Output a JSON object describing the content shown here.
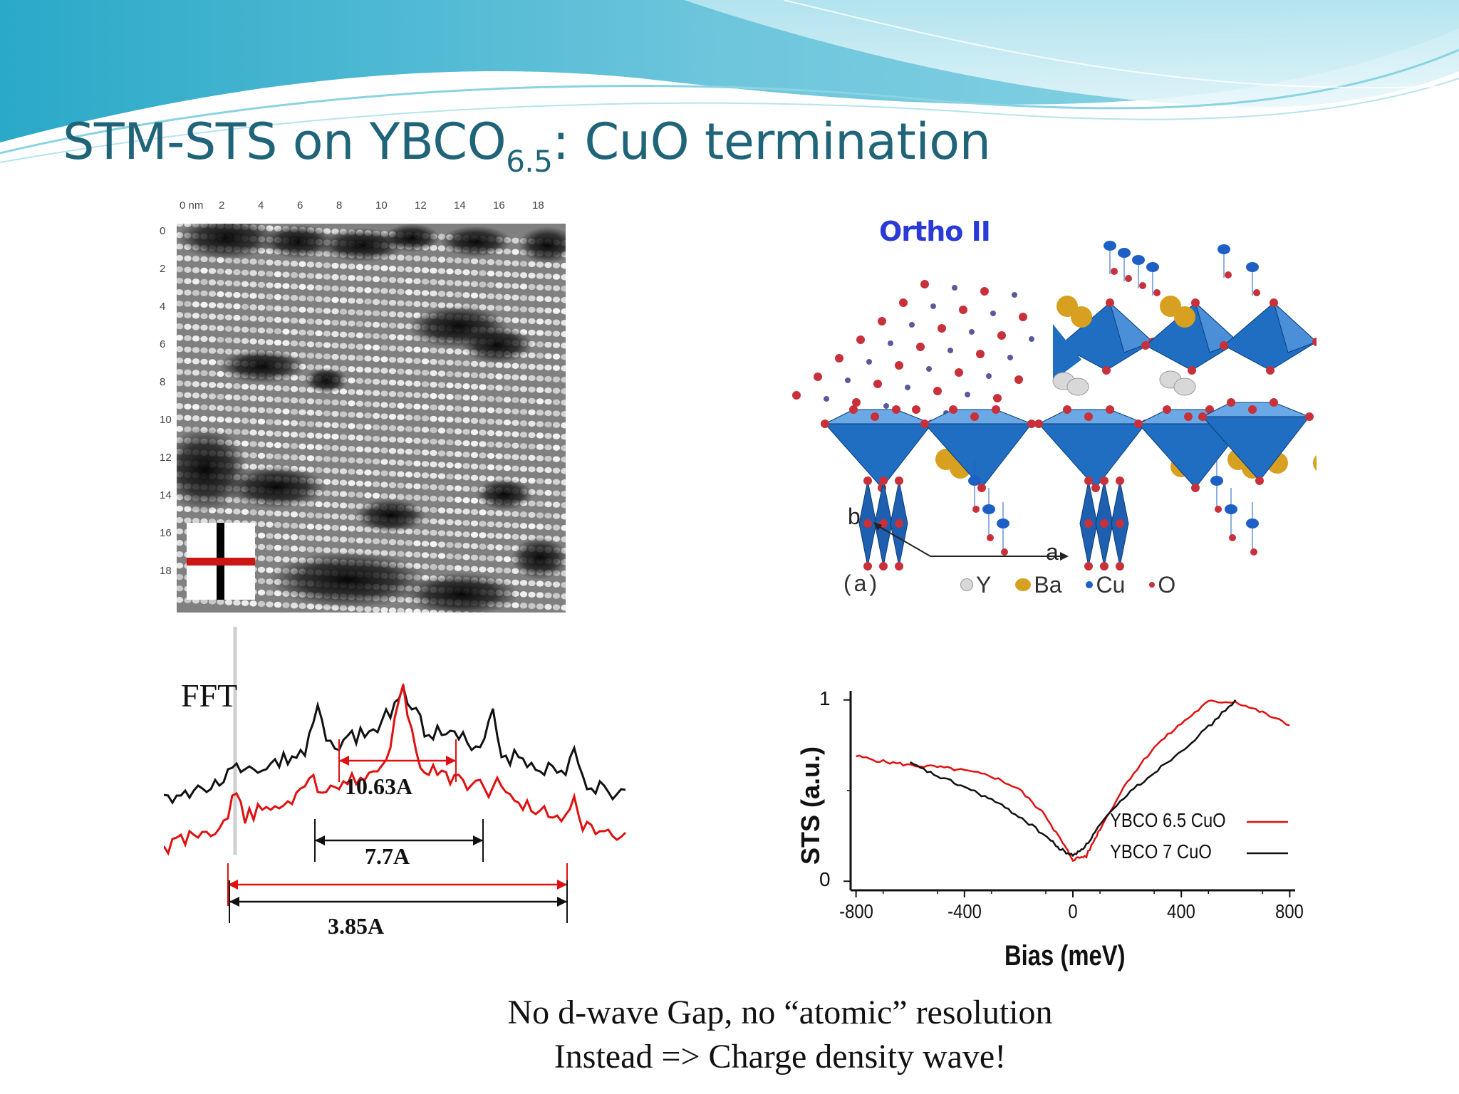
{
  "slide": {
    "title": "STM-STS on YBCO",
    "title_subscript": "6.5",
    "title_suffix": ": CuO termination",
    "caption_line1": "No d-wave Gap, no “atomic” resolution",
    "caption_line2": "Instead => Charge density wave!"
  },
  "stm_image": {
    "x_ticks": [
      "0 nm",
      "2",
      "4",
      "6",
      "8",
      "10",
      "12",
      "14",
      "16",
      "18"
    ],
    "y_ticks": [
      "0",
      "2",
      "4",
      "6",
      "8",
      "10",
      "12",
      "14",
      "16",
      "18"
    ]
  },
  "crystal": {
    "title": "Ortho II",
    "axis_b": "b",
    "axis_a": "a",
    "panel_label": "(a)",
    "legend": [
      {
        "label": "Y",
        "color": "#d8d8d8"
      },
      {
        "label": "Ba",
        "color": "#d8a020"
      },
      {
        "label": "Cu",
        "color": "#1d5fc4"
      },
      {
        "label": "O",
        "color": "#c8303a"
      }
    ],
    "colors": {
      "polyhedra": "#1f6ec2",
      "oxygen": "#c8303a",
      "copper": "#1d5fc4",
      "barium": "#d8a020",
      "yttrium": "#d8d8d8"
    }
  },
  "fft": {
    "label": "FFT",
    "distances": [
      "10.63A",
      "7.7A",
      "3.85A"
    ],
    "colors": {
      "red": "#e01010",
      "black": "#111111"
    }
  },
  "chart_data": {
    "type": "line",
    "xlabel": "Bias (meV)",
    "ylabel": "STS (a.u.)",
    "xlim": [
      -820,
      820
    ],
    "ylim": [
      -0.05,
      1.05
    ],
    "x_ticks": [
      -800,
      -400,
      0,
      400,
      800
    ],
    "y_ticks": [
      0,
      1
    ],
    "grid": false,
    "legend_position": "bottom-right",
    "series": [
      {
        "name": "YBCO 6.5 CuO",
        "color": "#e01010",
        "x": [
          -800,
          -700,
          -600,
          -500,
          -400,
          -300,
          -200,
          -100,
          -50,
          0,
          50,
          100,
          200,
          300,
          400,
          500,
          600,
          700,
          800
        ],
        "y": [
          0.69,
          0.66,
          0.64,
          0.63,
          0.61,
          0.58,
          0.51,
          0.36,
          0.24,
          0.12,
          0.14,
          0.29,
          0.55,
          0.74,
          0.87,
          0.99,
          0.99,
          0.93,
          0.86
        ]
      },
      {
        "name": "YBCO 7 CuO",
        "color": "#111111",
        "x": [
          -600,
          -500,
          -400,
          -300,
          -200,
          -100,
          -50,
          0,
          50,
          100,
          200,
          300,
          400,
          500,
          600
        ],
        "y": [
          0.65,
          0.58,
          0.52,
          0.45,
          0.36,
          0.25,
          0.18,
          0.14,
          0.2,
          0.31,
          0.48,
          0.6,
          0.72,
          0.85,
          1.0
        ]
      }
    ]
  }
}
